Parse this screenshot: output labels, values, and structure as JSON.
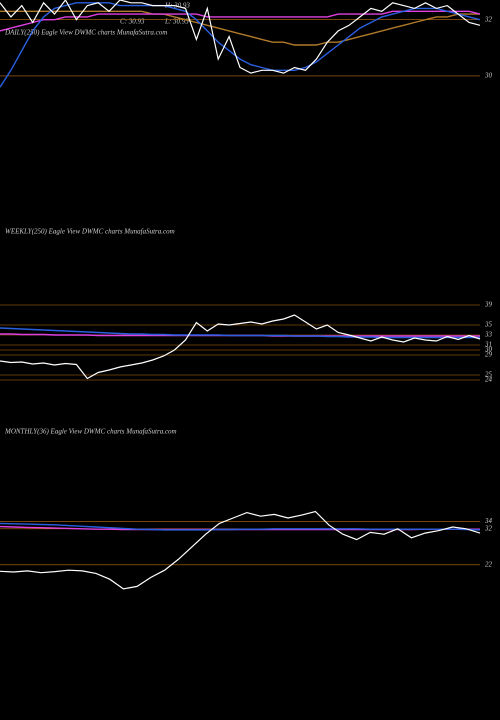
{
  "header": {
    "items": [
      "H: 30.93",
      "L: 30.93",
      "C: 30.93"
    ]
  },
  "chart_data": [
    {
      "type": "line",
      "title": "DAILY(250) Eagle View  DWMC charts MunafaSutra.com",
      "ylim": [
        29.5,
        32.7
      ],
      "yticks": [
        32,
        30
      ],
      "series": [
        {
          "color": "#b07a2a",
          "values": [
            32.3,
            32.3,
            32.3,
            32.3,
            32.3,
            32.3,
            32.3,
            32.3,
            32.3,
            32.3,
            32.3,
            32.3,
            32.3,
            32.3,
            32.2,
            32.2,
            32.1,
            32.0,
            31.9,
            31.8,
            31.7,
            31.6,
            31.5,
            31.4,
            31.3,
            31.2,
            31.2,
            31.1,
            31.1,
            31.1,
            31.2,
            31.2,
            31.3,
            31.4,
            31.5,
            31.6,
            31.7,
            31.8,
            31.9,
            32.0,
            32.1,
            32.1,
            32.2,
            32.2,
            32.2
          ]
        },
        {
          "color": "#e040e0",
          "values": [
            31.6,
            31.7,
            31.8,
            31.9,
            32.0,
            32.0,
            32.1,
            32.1,
            32.1,
            32.2,
            32.2,
            32.2,
            32.2,
            32.2,
            32.2,
            32.2,
            32.2,
            32.2,
            32.2,
            32.1,
            32.1,
            32.1,
            32.1,
            32.1,
            32.1,
            32.1,
            32.1,
            32.1,
            32.1,
            32.1,
            32.1,
            32.2,
            32.2,
            32.2,
            32.2,
            32.2,
            32.3,
            32.3,
            32.3,
            32.3,
            32.3,
            32.3,
            32.3,
            32.3,
            32.2
          ]
        },
        {
          "color": "#2a5fe0",
          "values": [
            29.6,
            30.2,
            30.9,
            31.6,
            32.1,
            32.4,
            32.5,
            32.6,
            32.6,
            32.6,
            32.6,
            32.5,
            32.5,
            32.5,
            32.5,
            32.5,
            32.4,
            32.3,
            32.0,
            31.6,
            31.2,
            30.9,
            30.6,
            30.4,
            30.3,
            30.2,
            30.2,
            30.2,
            30.3,
            30.5,
            30.8,
            31.1,
            31.4,
            31.7,
            31.9,
            32.1,
            32.2,
            32.3,
            32.4,
            32.4,
            32.4,
            32.3,
            32.2,
            32.1,
            32.0
          ]
        },
        {
          "color": "#ffffff",
          "values": [
            32.6,
            32.1,
            32.5,
            31.9,
            32.6,
            32.2,
            32.7,
            32.0,
            32.5,
            32.6,
            32.3,
            32.7,
            32.6,
            32.6,
            32.5,
            32.5,
            32.5,
            32.4,
            31.3,
            32.4,
            30.6,
            31.4,
            30.3,
            30.1,
            30.2,
            30.2,
            30.1,
            30.3,
            30.2,
            30.6,
            31.2,
            31.6,
            31.8,
            32.1,
            32.4,
            32.3,
            32.6,
            32.5,
            32.4,
            32.6,
            32.4,
            32.5,
            32.2,
            31.9,
            31.8
          ]
        }
      ]
    },
    {
      "type": "line",
      "title": "WEEKLY(250) Eagle View  DWMC charts MunafaSutra.com",
      "ylim": [
        23,
        40
      ],
      "yticks": [
        39,
        35,
        33,
        31,
        30,
        29,
        25,
        24
      ],
      "series": [
        {
          "color": "#e040e0",
          "values": [
            33.2,
            33.2,
            33.1,
            33.1,
            33.1,
            33.0,
            33.0,
            33.0,
            33.0,
            32.9,
            32.9,
            32.9,
            32.9,
            32.9,
            32.9,
            32.9,
            32.9,
            32.9,
            32.9,
            32.9,
            32.9,
            32.9,
            32.9,
            32.9,
            32.9,
            32.8,
            32.8,
            32.8,
            32.8,
            32.8,
            32.8,
            32.8,
            32.8,
            32.8,
            32.8,
            32.8,
            32.8,
            32.8,
            32.8,
            32.8,
            32.8,
            32.8,
            32.8,
            32.8,
            32.8
          ]
        },
        {
          "color": "#2a5fe0",
          "values": [
            34.4,
            34.3,
            34.2,
            34.1,
            34.0,
            33.9,
            33.8,
            33.7,
            33.6,
            33.5,
            33.4,
            33.3,
            33.2,
            33.2,
            33.1,
            33.1,
            33.0,
            33.0,
            33.0,
            33.0,
            33.0,
            32.9,
            32.9,
            32.9,
            32.9,
            32.9,
            32.9,
            32.8,
            32.8,
            32.8,
            32.7,
            32.7,
            32.6,
            32.6,
            32.6,
            32.5,
            32.5,
            32.5,
            32.5,
            32.5,
            32.5,
            32.5,
            32.5,
            32.5,
            32.5
          ]
        },
        {
          "color": "#ffffff",
          "values": [
            27.8,
            27.5,
            27.6,
            27.2,
            27.4,
            27.0,
            27.3,
            27.1,
            24.3,
            25.5,
            26.0,
            26.6,
            27.0,
            27.4,
            28.0,
            28.8,
            30.0,
            32.0,
            35.5,
            33.8,
            35.2,
            35.0,
            35.3,
            35.6,
            35.2,
            35.8,
            36.2,
            37.0,
            35.6,
            34.2,
            35.0,
            33.5,
            33.0,
            32.4,
            31.8,
            32.6,
            32.0,
            31.6,
            32.4,
            32.0,
            31.8,
            32.7,
            32.1,
            32.9,
            32.2
          ]
        }
      ]
    },
    {
      "type": "line",
      "title": "MONTHLY(36) Eagle View  DWMC charts MunafaSutra.com",
      "ylim": [
        15,
        40
      ],
      "yticks": [
        34,
        32,
        22
      ],
      "series": [
        {
          "color": "#e040e0",
          "values": [
            32.6,
            32.5,
            32.4,
            32.3,
            32.2,
            32.1,
            32.0,
            31.9,
            31.9,
            31.8,
            31.8,
            31.8,
            31.8,
            31.8,
            31.8,
            31.8,
            31.8,
            31.8,
            31.8,
            31.8,
            31.8,
            31.8,
            31.8,
            31.8,
            31.8,
            31.8,
            31.8,
            31.8,
            31.8,
            31.8,
            31.8,
            31.9,
            31.9,
            31.9,
            31.9,
            31.9
          ]
        },
        {
          "color": "#2a5fe0",
          "values": [
            33.5,
            33.4,
            33.3,
            33.2,
            33.1,
            32.9,
            32.7,
            32.5,
            32.3,
            32.1,
            31.9,
            31.8,
            31.7,
            31.7,
            31.7,
            31.7,
            31.8,
            31.8,
            31.9,
            31.9,
            32.0,
            32.0,
            32.0,
            32.0,
            32.0,
            32.0,
            32.0,
            31.9,
            31.9,
            31.9,
            31.9,
            31.9,
            31.9,
            31.9,
            31.8,
            31.7
          ]
        },
        {
          "color": "#ffffff",
          "values": [
            20.2,
            20.0,
            20.3,
            19.8,
            20.1,
            20.5,
            20.3,
            19.6,
            18.0,
            15.3,
            16.0,
            18.5,
            20.5,
            23.5,
            27.0,
            30.5,
            33.5,
            35.0,
            36.5,
            35.5,
            36.0,
            35.0,
            35.8,
            36.8,
            33.0,
            30.5,
            29.0,
            31.0,
            30.5,
            32.0,
            29.5,
            30.8,
            31.5,
            32.5,
            32.0,
            30.8
          ]
        }
      ]
    }
  ]
}
